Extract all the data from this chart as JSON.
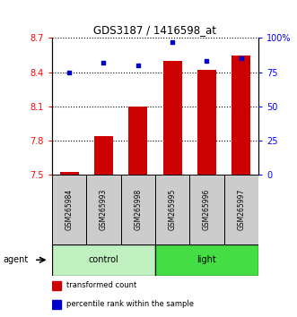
{
  "title": "GDS3187 / 1416598_at",
  "samples": [
    "GSM265984",
    "GSM265993",
    "GSM265998",
    "GSM265995",
    "GSM265996",
    "GSM265997"
  ],
  "red_values": [
    7.52,
    7.84,
    8.1,
    8.5,
    8.42,
    8.55
  ],
  "blue_values": [
    75,
    82,
    80,
    97,
    83,
    85
  ],
  "ylim_left": [
    7.5,
    8.7
  ],
  "ylim_right": [
    0,
    100
  ],
  "yticks_left": [
    7.5,
    7.8,
    8.1,
    8.4,
    8.7
  ],
  "ytick_labels_left": [
    "7.5",
    "7.8",
    "8.1",
    "8.4",
    "8.7"
  ],
  "yticks_right": [
    0,
    25,
    50,
    75,
    100
  ],
  "ytick_labels_right": [
    "0",
    "25",
    "50",
    "75",
    "100%"
  ],
  "groups": [
    {
      "label": "control",
      "n": 3,
      "color": "#c0f0c0"
    },
    {
      "label": "light",
      "n": 3,
      "color": "#44dd44"
    }
  ],
  "agent_label": "agent",
  "bar_color": "#cc0000",
  "dot_color": "#0000cc",
  "bar_width": 0.55,
  "legend_items": [
    {
      "color": "#cc0000",
      "label": "transformed count"
    },
    {
      "color": "#0000cc",
      "label": "percentile rank within the sample"
    }
  ],
  "ybase": 7.5
}
